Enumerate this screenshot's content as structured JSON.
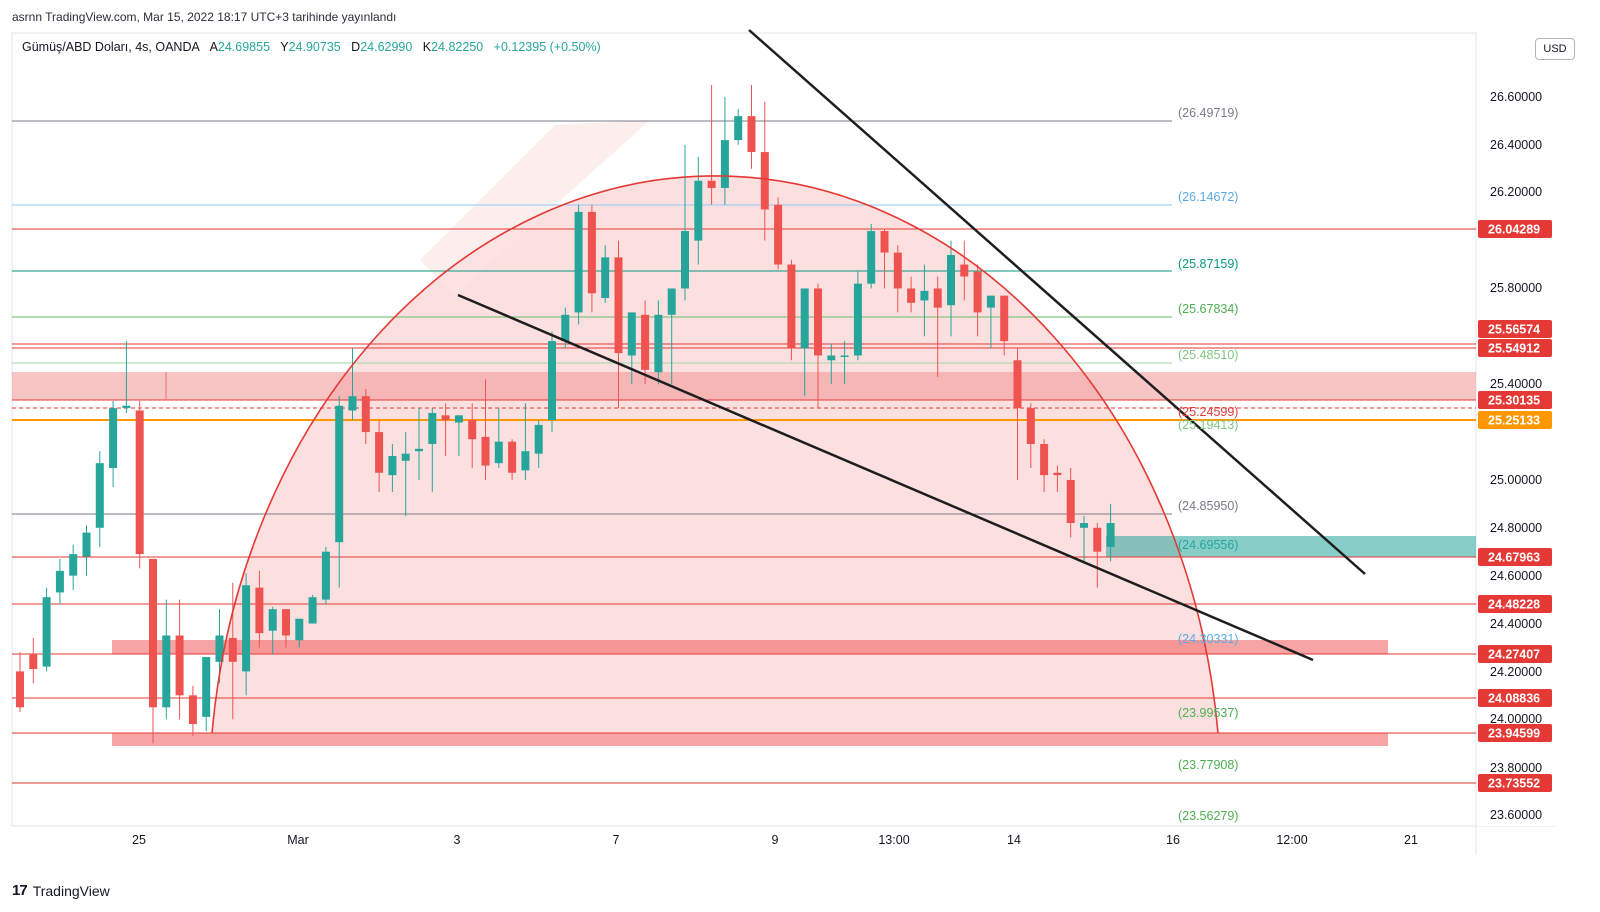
{
  "header": {
    "published": "asrnn TradingView.com, Mar 15, 2022 18:17 UTC+3 tarihinde yayınlandı"
  },
  "legend": {
    "symbol": "Gümüş/ABD Doları, 4s, OANDA",
    "o_label": "A",
    "o_value": "24.69855",
    "h_label": "Y",
    "h_value": "24.90735",
    "l_label": "D",
    "l_value": "24.62990",
    "c_label": "K",
    "c_value": "24.82250",
    "change": "+0.12395 (+0.50%)"
  },
  "currency_label": "USD",
  "footer": {
    "logo_mark": "17",
    "logo_text": "TradingView"
  },
  "colors": {
    "up": "#26a69a",
    "down": "#ef5350",
    "line": "#e53935",
    "orange": "#ff9800",
    "trend": "#1e1e1e"
  },
  "chart_data": {
    "type": "candlestick",
    "y_axis_ticks": [
      "26.60000",
      "26.40000",
      "26.20000",
      "25.80000",
      "25.40000",
      "25.00000",
      "24.80000",
      "24.60000",
      "24.40000",
      "24.20000",
      "24.00000",
      "23.80000",
      "23.60000"
    ],
    "x_axis_ticks": [
      "25",
      "Mar",
      "3",
      "7",
      "9",
      "13:00",
      "14",
      "16",
      "12:00",
      "21"
    ],
    "price_labels": [
      {
        "value": "26.04289",
        "color": "#e53935"
      },
      {
        "value": "25.56574",
        "color": "#e53935"
      },
      {
        "value": "25.54912",
        "color": "#e53935"
      },
      {
        "value": "25.30135",
        "color": "#e53935"
      },
      {
        "value": "25.25133",
        "color": "#ff9800"
      },
      {
        "value": "24.67963",
        "color": "#e53935"
      },
      {
        "value": "24.48228",
        "color": "#e53935"
      },
      {
        "value": "24.27407",
        "color": "#e53935"
      },
      {
        "value": "24.08836",
        "color": "#e53935"
      },
      {
        "value": "23.94599",
        "color": "#e53935"
      },
      {
        "value": "23.73552",
        "color": "#e53935"
      }
    ],
    "fib_labels": [
      {
        "value": "(26.49719)",
        "color": "#787b86"
      },
      {
        "value": "(26.14672)",
        "color": "#5aa9e6"
      },
      {
        "value": "(25.87159)",
        "color": "#089981"
      },
      {
        "value": "(25.67834)",
        "color": "#4caf50"
      },
      {
        "value": "(25.48510)",
        "color": "#81c784"
      },
      {
        "value": "(25.24599)",
        "color": "#e53935"
      },
      {
        "value": "(25.19413)",
        "color": "#81c784"
      },
      {
        "value": "(24.85950)",
        "color": "#787b86"
      },
      {
        "value": "(24.69556)",
        "color": "#26a69a"
      },
      {
        "value": "(24.30331)",
        "color": "#5aa9e6"
      },
      {
        "value": "(23.99537)",
        "color": "#4caf50"
      },
      {
        "value": "(23.77908)",
        "color": "#4caf50"
      },
      {
        "value": "(23.56279)",
        "color": "#4caf50"
      }
    ],
    "candles": [
      [
        24.2,
        24.05,
        24.28,
        24.03
      ],
      [
        24.27,
        24.21,
        24.34,
        24.15
      ],
      [
        24.22,
        24.51,
        24.55,
        24.2
      ],
      [
        24.53,
        24.62,
        24.67,
        24.48
      ],
      [
        24.6,
        24.69,
        24.73,
        24.54
      ],
      [
        24.68,
        24.78,
        24.81,
        24.6
      ],
      [
        24.8,
        25.07,
        25.12,
        24.72
      ],
      [
        25.05,
        25.3,
        25.33,
        24.97
      ],
      [
        25.3,
        25.31,
        25.58,
        25.28
      ],
      [
        25.29,
        24.69,
        25.33,
        24.63
      ],
      [
        24.67,
        24.05,
        24.67,
        23.9
      ],
      [
        24.05,
        24.35,
        24.5,
        24.0
      ],
      [
        24.35,
        24.1,
        24.5,
        24.0
      ],
      [
        24.1,
        23.98,
        24.14,
        23.93
      ],
      [
        24.01,
        24.26,
        24.25,
        23.95
      ],
      [
        24.24,
        24.35,
        24.46,
        24.15
      ],
      [
        24.34,
        24.24,
        24.57,
        24.0
      ],
      [
        24.2,
        24.56,
        24.61,
        24.1
      ],
      [
        24.55,
        24.36,
        24.62,
        24.3
      ],
      [
        24.37,
        24.46,
        24.47,
        24.27
      ],
      [
        24.46,
        24.35,
        24.46,
        24.3
      ],
      [
        24.33,
        24.42,
        24.42,
        24.3
      ],
      [
        24.4,
        24.51,
        24.52,
        24.4
      ],
      [
        24.5,
        24.7,
        24.72,
        24.48
      ],
      [
        24.74,
        25.31,
        25.35,
        24.55
      ],
      [
        25.29,
        25.35,
        25.55,
        25.25
      ],
      [
        25.35,
        25.2,
        25.38,
        25.15
      ],
      [
        25.2,
        25.03,
        25.25,
        24.95
      ],
      [
        25.02,
        25.1,
        25.15,
        24.95
      ],
      [
        25.08,
        25.11,
        25.2,
        24.85
      ],
      [
        25.12,
        25.13,
        25.3,
        25.0
      ],
      [
        25.15,
        25.28,
        25.3,
        24.95
      ],
      [
        25.27,
        25.25,
        25.32,
        25.1
      ],
      [
        25.24,
        25.27,
        25.27,
        25.1
      ],
      [
        25.25,
        25.17,
        25.32,
        25.05
      ],
      [
        25.18,
        25.06,
        25.42,
        25.0
      ],
      [
        25.07,
        25.16,
        25.3,
        25.05
      ],
      [
        25.16,
        25.03,
        25.17,
        25.0
      ],
      [
        25.04,
        25.12,
        25.32,
        25.0
      ],
      [
        25.11,
        25.23,
        25.25,
        25.05
      ],
      [
        25.25,
        25.58,
        25.62,
        25.2
      ],
      [
        25.58,
        25.69,
        25.72,
        25.55
      ],
      [
        25.7,
        26.12,
        26.15,
        25.65
      ],
      [
        26.12,
        25.78,
        26.15,
        25.7
      ],
      [
        25.76,
        25.93,
        25.98,
        25.74
      ],
      [
        25.93,
        25.53,
        26.0,
        25.3
      ],
      [
        25.52,
        25.7,
        25.7,
        25.4
      ],
      [
        25.69,
        25.46,
        25.75,
        25.4
      ],
      [
        25.45,
        25.69,
        25.75,
        25.4
      ],
      [
        25.69,
        25.8,
        25.8,
        25.4
      ],
      [
        25.8,
        26.04,
        26.4,
        25.75
      ],
      [
        26.0,
        26.25,
        26.35,
        25.9
      ],
      [
        26.25,
        26.22,
        26.65,
        26.15
      ],
      [
        26.22,
        26.42,
        26.6,
        26.15
      ],
      [
        26.42,
        26.52,
        26.55,
        26.4
      ],
      [
        26.52,
        26.37,
        26.65,
        26.3
      ],
      [
        26.37,
        26.13,
        26.58,
        26.0
      ],
      [
        26.15,
        25.9,
        26.18,
        25.88
      ],
      [
        25.9,
        25.55,
        25.92,
        25.5
      ],
      [
        25.55,
        25.8,
        25.8,
        25.35
      ],
      [
        25.8,
        25.52,
        25.82,
        25.3
      ],
      [
        25.5,
        25.52,
        25.57,
        25.4
      ],
      [
        25.52,
        25.52,
        25.58,
        25.4
      ],
      [
        25.52,
        25.82,
        25.87,
        25.5
      ],
      [
        25.82,
        26.04,
        26.07,
        25.8
      ],
      [
        26.04,
        25.95,
        26.05,
        25.8
      ],
      [
        25.95,
        25.8,
        25.98,
        25.7
      ],
      [
        25.8,
        25.74,
        25.85,
        25.7
      ],
      [
        25.75,
        25.79,
        25.9,
        25.6
      ],
      [
        25.8,
        25.72,
        25.85,
        25.43
      ],
      [
        25.73,
        25.94,
        26.0,
        25.6
      ],
      [
        25.9,
        25.85,
        26.0,
        25.75
      ],
      [
        25.87,
        25.7,
        25.9,
        25.6
      ],
      [
        25.72,
        25.77,
        25.77,
        25.55
      ],
      [
        25.77,
        25.58,
        25.77,
        25.52
      ],
      [
        25.5,
        25.3,
        25.55,
        25.0
      ],
      [
        25.3,
        25.15,
        25.32,
        25.05
      ],
      [
        25.15,
        25.02,
        25.17,
        24.95
      ],
      [
        25.03,
        25.02,
        25.06,
        24.95
      ],
      [
        25.0,
        24.82,
        25.05,
        24.76
      ],
      [
        24.8,
        24.82,
        24.85,
        24.65
      ],
      [
        24.8,
        24.7,
        24.82,
        24.55
      ],
      [
        24.72,
        24.82,
        24.9,
        24.66
      ]
    ]
  }
}
